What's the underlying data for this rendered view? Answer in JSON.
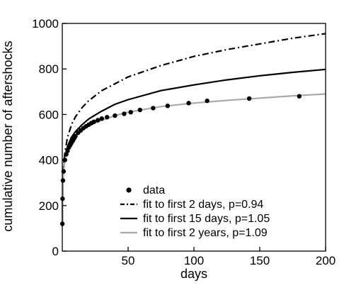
{
  "chart_data": {
    "type": "line",
    "title": "",
    "xlabel": "days",
    "ylabel": "cumulative number of aftershocks",
    "xlim": [
      0,
      200
    ],
    "ylim": [
      0,
      1000
    ],
    "xticks": [
      50,
      100,
      150,
      200
    ],
    "yticks": [
      0,
      200,
      400,
      600,
      800,
      1000
    ],
    "grid": false,
    "legend_position": "bottom-right",
    "series": [
      {
        "name": "data",
        "kind": "scatter",
        "color": "#000000",
        "x": [
          0.05,
          0.2,
          0.5,
          1,
          2,
          3,
          4,
          5,
          6,
          7,
          8,
          9,
          10,
          12,
          14,
          16,
          18,
          20,
          22,
          24,
          27,
          30,
          34,
          40,
          47,
          52,
          59,
          69,
          80,
          96,
          110,
          142,
          180
        ],
        "y": [
          120,
          230,
          310,
          350,
          400,
          425,
          440,
          455,
          465,
          475,
          485,
          495,
          505,
          520,
          530,
          540,
          548,
          555,
          562,
          568,
          575,
          582,
          588,
          595,
          603,
          610,
          620,
          628,
          638,
          650,
          660,
          670,
          680
        ]
      },
      {
        "name": "fit to first 2 days, p=0.94",
        "kind": "line",
        "style": "dashdot",
        "color": "#000000",
        "x": [
          0.05,
          0.2,
          0.5,
          1,
          2,
          4,
          7,
          10,
          15,
          20,
          30,
          40,
          50,
          75,
          100,
          125,
          150,
          175,
          200
        ],
        "y": [
          110,
          210,
          310,
          370,
          435,
          500,
          555,
          590,
          630,
          660,
          705,
          735,
          765,
          815,
          855,
          885,
          910,
          935,
          955
        ]
      },
      {
        "name": "fit to first 15 days, p=1.05",
        "kind": "line",
        "style": "solid",
        "color": "#000000",
        "x": [
          0.05,
          0.2,
          0.5,
          1,
          2,
          4,
          7,
          10,
          15,
          20,
          30,
          40,
          50,
          75,
          100,
          125,
          150,
          175,
          200
        ],
        "y": [
          110,
          210,
          305,
          355,
          410,
          460,
          500,
          525,
          555,
          580,
          615,
          645,
          665,
          705,
          730,
          752,
          770,
          785,
          798
        ]
      },
      {
        "name": "fit to first 2 years, p=1.09",
        "kind": "line",
        "style": "solid",
        "color": "#aaaaaa",
        "x": [
          0.05,
          0.2,
          0.5,
          1,
          2,
          4,
          7,
          10,
          15,
          20,
          30,
          40,
          50,
          75,
          100,
          125,
          150,
          175,
          200
        ],
        "y": [
          110,
          210,
          305,
          350,
          400,
          445,
          480,
          505,
          530,
          550,
          575,
          595,
          610,
          635,
          650,
          662,
          672,
          682,
          690
        ]
      }
    ]
  }
}
